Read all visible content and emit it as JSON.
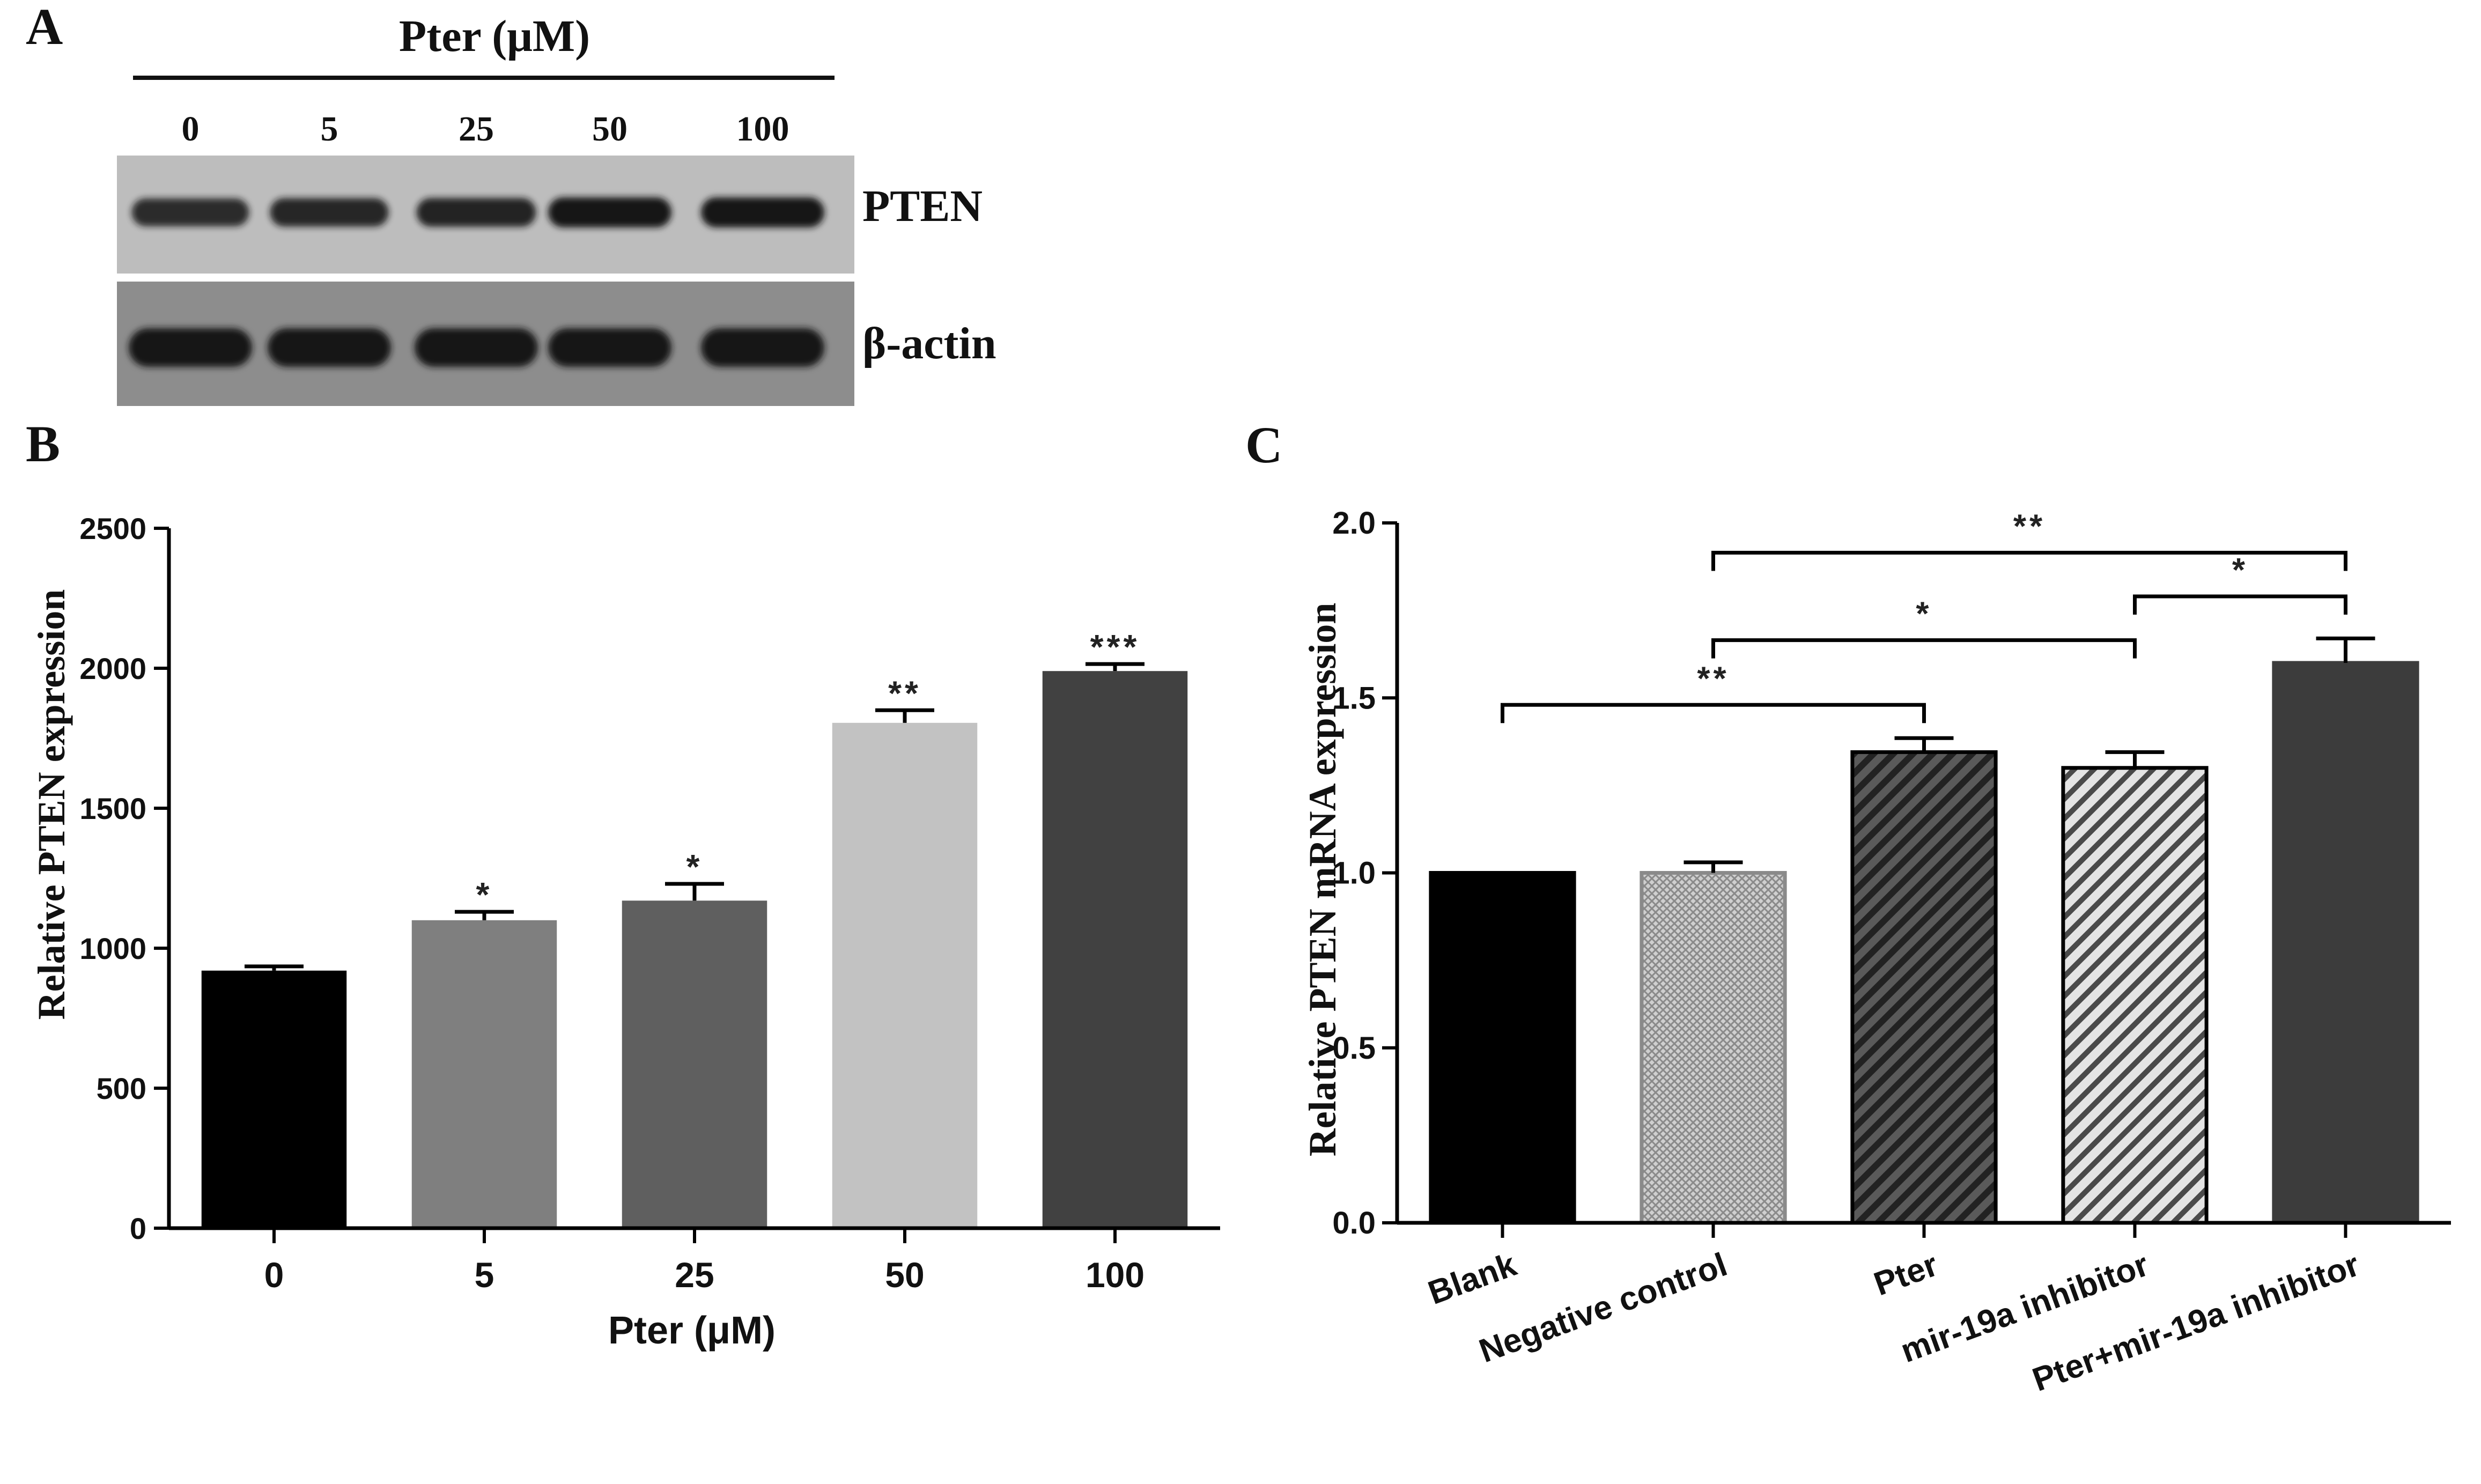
{
  "panels": {
    "a": "A",
    "b": "B",
    "c": "C"
  },
  "western_blot": {
    "treatment_label": "Pter (μM)",
    "lanes": [
      "0",
      "5",
      "25",
      "50",
      "100"
    ],
    "rows": [
      {
        "label": "PTEN",
        "intensity": [
          0.72,
          0.78,
          0.82,
          1.0,
          1.0
        ]
      },
      {
        "label": "β-actin",
        "intensity": [
          1.0,
          1.0,
          1.0,
          1.0,
          1.0
        ]
      }
    ]
  },
  "chart_data": [
    {
      "type": "bar",
      "panel": "B",
      "title": "",
      "xlabel": "Pter (μM)",
      "ylabel": "Relative PTEN expression",
      "categories": [
        "0",
        "5",
        "25",
        "50",
        "100"
      ],
      "values": [
        920,
        1100,
        1170,
        1805,
        1990
      ],
      "errors": [
        15,
        30,
        60,
        45,
        25
      ],
      "significance": [
        "",
        "*",
        "*",
        "**",
        "***"
      ],
      "colors": [
        "#000000",
        "#7f7f7f",
        "#5f5f5f",
        "#c2c2c2",
        "#414141"
      ],
      "ylim": [
        0,
        2500
      ],
      "yticks": [
        "0",
        "500",
        "1000",
        "1500",
        "2000",
        "2500"
      ]
    },
    {
      "type": "bar",
      "panel": "C",
      "title": "",
      "xlabel": "",
      "ylabel": "Relative PTEN mRNA expression",
      "categories": [
        "Blank",
        "Negative control",
        "Pter",
        "mir-19a inhibitor",
        "Pter+mir-19a inhibitor"
      ],
      "values": [
        1.0,
        1.0,
        1.345,
        1.3,
        1.6
      ],
      "errors": [
        0.0,
        0.03,
        0.04,
        0.045,
        0.07
      ],
      "fills": [
        "solid-black",
        "crosshatch-light",
        "hatch-dark",
        "hatch-light",
        "solid-dark"
      ],
      "colors": [
        "#000000",
        "#bdbdbd",
        "#3a3a3a",
        "#c8c8c8",
        "#3c3c3c"
      ],
      "ylim": [
        0,
        2.0
      ],
      "yticks": [
        "0.0",
        "0.5",
        "1.0",
        "1.5",
        "2.0"
      ],
      "comparisons": [
        {
          "from": 0,
          "to": 2,
          "label": "**"
        },
        {
          "from": 1,
          "to": 3,
          "label": "*"
        },
        {
          "from": 1,
          "to": 4,
          "label": "**"
        },
        {
          "from": 3,
          "to": 4,
          "label": "*"
        }
      ]
    }
  ]
}
